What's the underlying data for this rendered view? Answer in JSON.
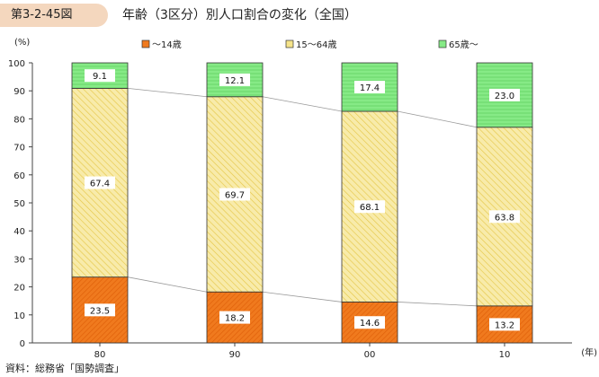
{
  "header": {
    "figure_number": "第3-2-45図",
    "title": "年齢（3区分）別人口割合の変化（全国）"
  },
  "source": "資料：総務省「国勢調査」",
  "colors": {
    "under15": "#f07a1e",
    "age15_64": "#f6e48a",
    "age65plus": "#86ea86",
    "badge": "#f4d7be"
  },
  "chart_data": {
    "type": "bar",
    "stacked": true,
    "title": "",
    "ylabel": "(%)",
    "xlabel": "(年)",
    "ylim": [
      0,
      100
    ],
    "yticks": [
      0,
      10,
      20,
      30,
      40,
      50,
      60,
      70,
      80,
      90,
      100
    ],
    "categories": [
      "80",
      "90",
      "00",
      "10"
    ],
    "legend_position": "top",
    "connector_lines": true,
    "series": [
      {
        "name": "～14歳",
        "values": [
          23.5,
          18.2,
          14.6,
          13.2
        ],
        "labels": [
          "23.5",
          "18.2",
          "14.6",
          "13.2"
        ]
      },
      {
        "name": "15～64歳",
        "values": [
          67.4,
          69.7,
          68.1,
          63.8
        ],
        "labels": [
          "67.4",
          "69.7",
          "68.1",
          "63.8"
        ]
      },
      {
        "name": "65歳～",
        "values": [
          9.1,
          12.1,
          17.4,
          23.0
        ],
        "labels": [
          "9.1",
          "12.1",
          "17.4",
          "23.0"
        ]
      }
    ]
  }
}
